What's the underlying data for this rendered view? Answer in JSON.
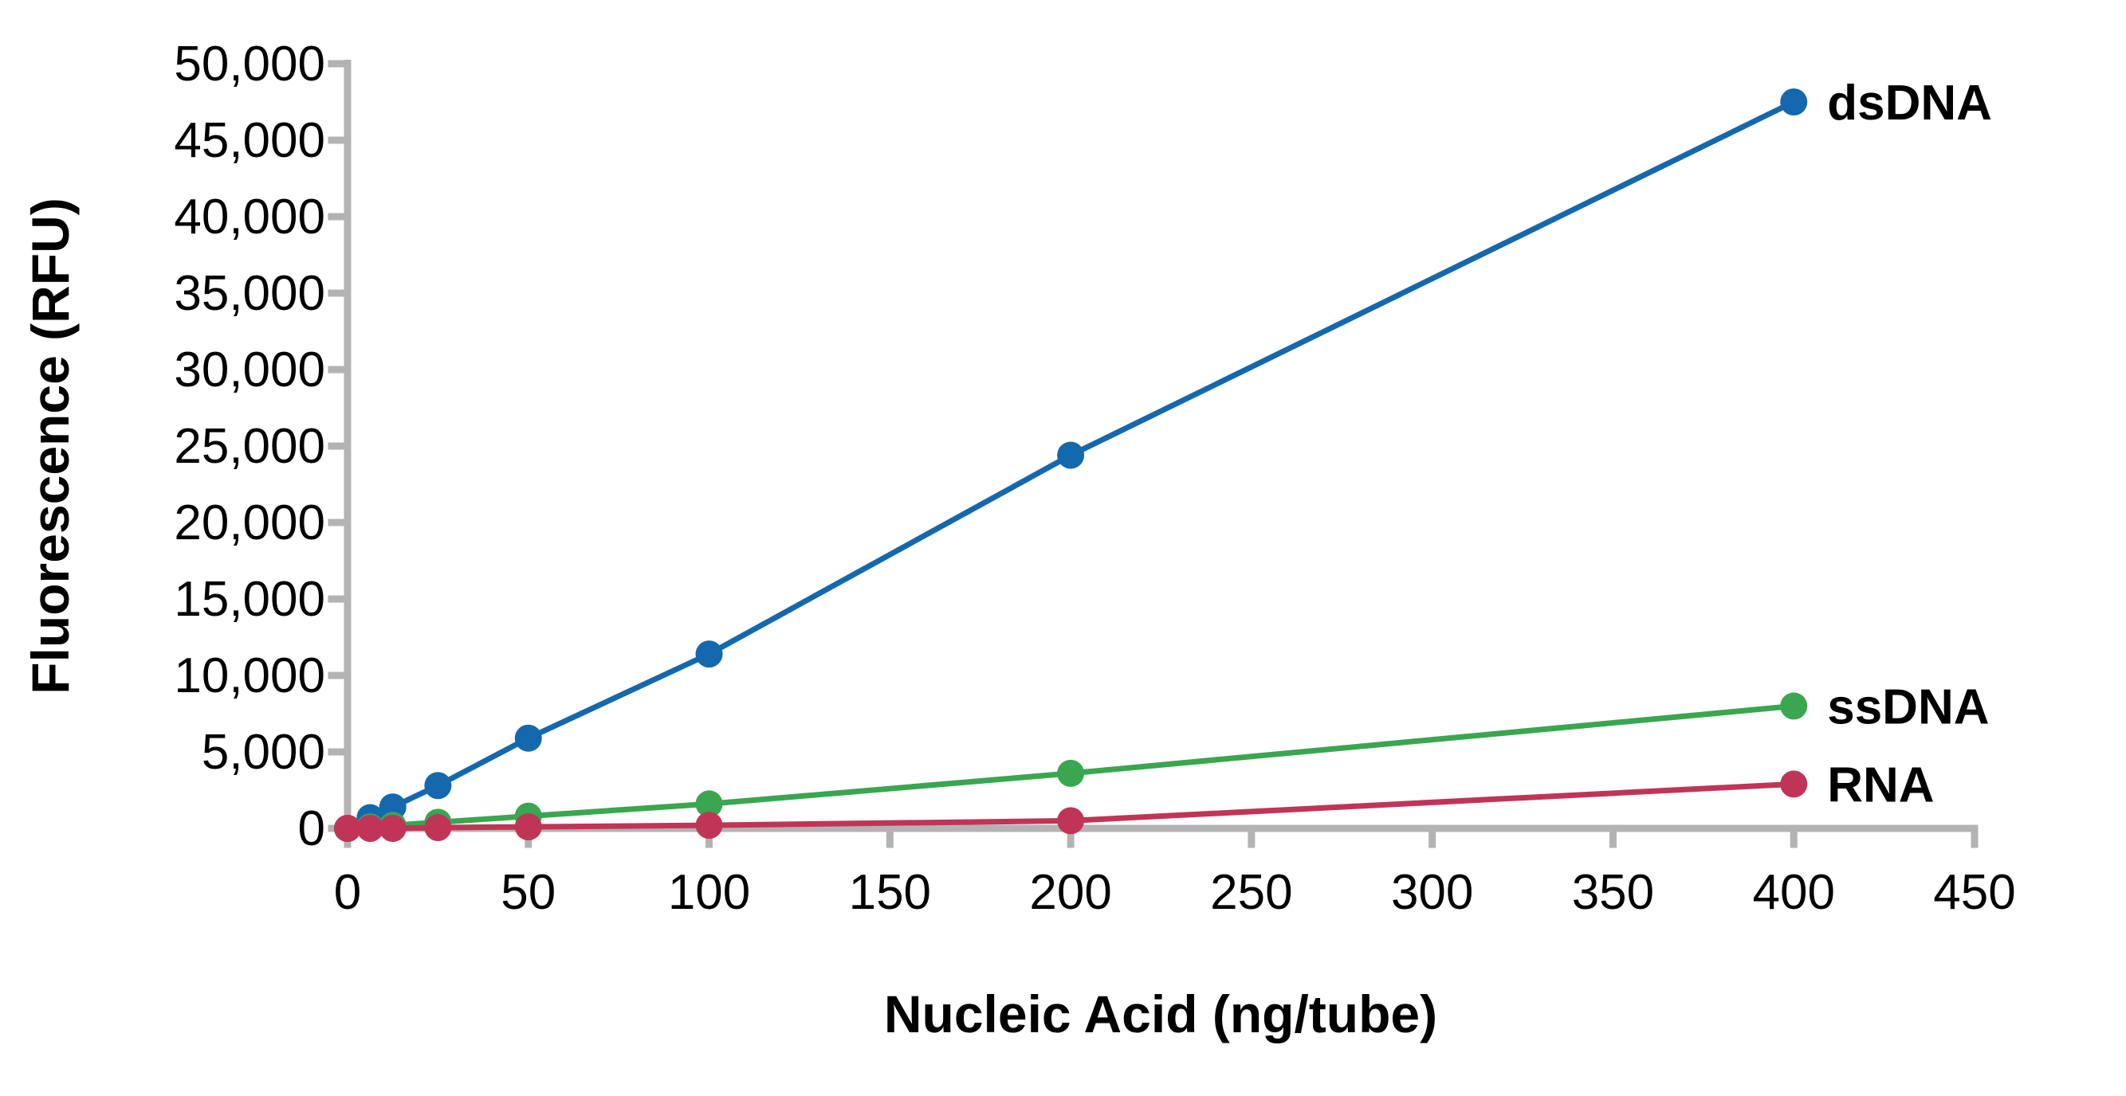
{
  "figure": {
    "background_color": "#ffffff",
    "axis_color": "#b3b3b3",
    "text_color": "#000000"
  },
  "chart_data": {
    "type": "line",
    "title": "",
    "xlabel": "Nucleic Acid (ng/tube)",
    "ylabel": "Fluorescence (RFU)",
    "x": [
      0,
      6.25,
      12.5,
      25,
      50,
      100,
      200,
      400
    ],
    "series": [
      {
        "name": "dsDNA",
        "color": "#1468ad",
        "values": [
          0,
          700,
          1400,
          2800,
          5900,
          11400,
          24400,
          47500
        ]
      },
      {
        "name": "ssDNA",
        "color": "#3aa64f",
        "values": [
          0,
          100,
          200,
          400,
          800,
          1600,
          3600,
          8000
        ]
      },
      {
        "name": "RNA",
        "color": "#c03557",
        "values": [
          0,
          0,
          0,
          50,
          100,
          200,
          500,
          2900
        ]
      }
    ],
    "xlim": [
      0,
      450
    ],
    "ylim": [
      0,
      50000
    ],
    "x_ticks": [
      0,
      50,
      100,
      150,
      200,
      250,
      300,
      350,
      400,
      450
    ],
    "y_ticks": [
      0,
      5000,
      10000,
      15000,
      20000,
      25000,
      30000,
      35000,
      40000,
      45000,
      50000
    ],
    "y_tick_format": "thousands-comma",
    "grid": false,
    "legend_position": "line-end-labels",
    "legend_entries": [
      "dsDNA",
      "ssDNA",
      "RNA"
    ],
    "marker": "filled-circle",
    "marker_on_every_point": true
  }
}
